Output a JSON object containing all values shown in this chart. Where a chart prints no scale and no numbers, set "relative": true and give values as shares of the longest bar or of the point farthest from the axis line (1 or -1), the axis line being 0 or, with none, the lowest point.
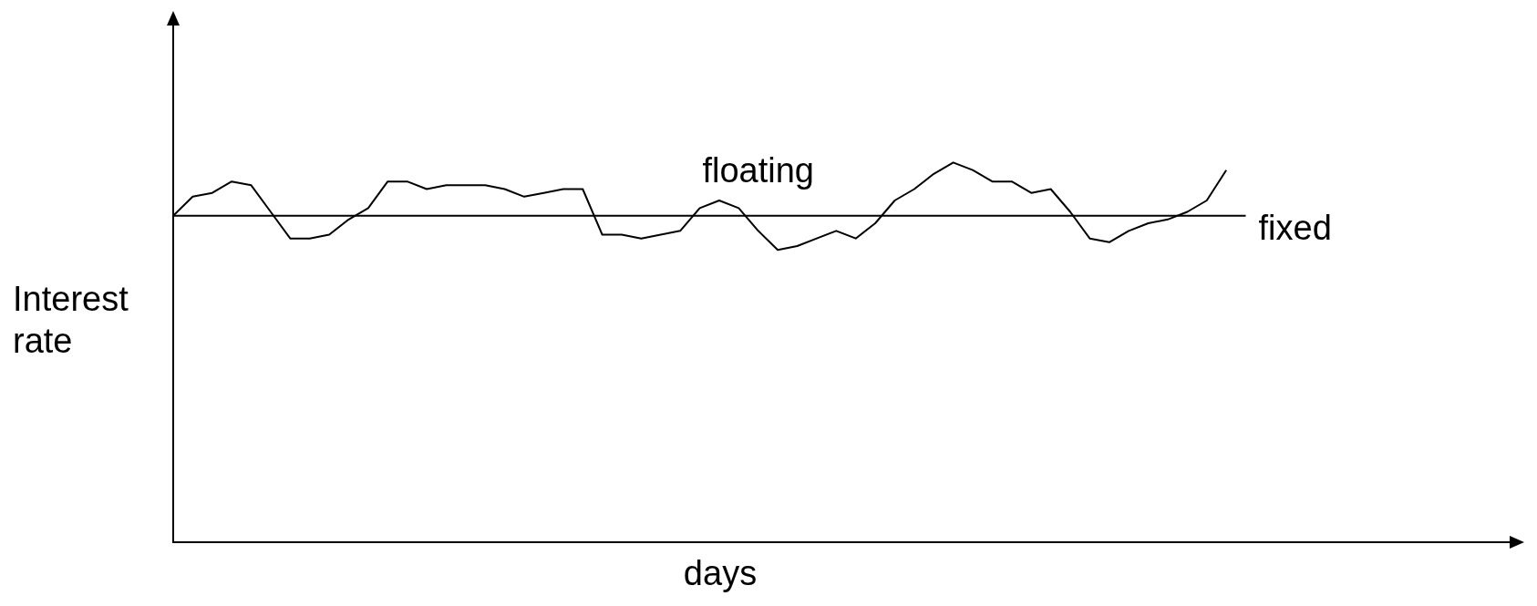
{
  "chart_data": {
    "type": "line",
    "relative": true,
    "xlabel": "days",
    "ylabel": "Interest rate",
    "legend": false,
    "grid": false,
    "marker": "none",
    "line_style": "solid",
    "categories": [
      null,
      null,
      null,
      null,
      null,
      null,
      null,
      null,
      null,
      null,
      null,
      null,
      null,
      null,
      null,
      null,
      null,
      null,
      null,
      null,
      null,
      null,
      null,
      null,
      null,
      null,
      null,
      null,
      null,
      null,
      null,
      null,
      null,
      null,
      null,
      null,
      null,
      null,
      null,
      null,
      null,
      null,
      null,
      null,
      null,
      null,
      null,
      null,
      null,
      null,
      null,
      null,
      null,
      null,
      null,
      null,
      null,
      null,
      null,
      null,
      null,
      null,
      null,
      null,
      null,
      null,
      null,
      null,
      null,
      null
    ],
    "series": [
      {
        "name": "floating",
        "color": "#000000",
        "values": [
          0.86,
          0.91,
          0.92,
          0.95,
          0.94,
          0.87,
          0.8,
          0.8,
          0.81,
          0.85,
          0.88,
          0.95,
          0.95,
          0.93,
          0.94,
          0.94,
          0.94,
          0.93,
          0.91,
          0.92,
          0.93,
          0.93,
          0.81,
          0.81,
          0.8,
          0.81,
          0.82,
          0.88,
          0.9,
          0.88,
          0.82,
          0.77,
          0.78,
          0.8,
          0.82,
          0.8,
          0.84,
          0.9,
          0.93,
          0.97,
          1,
          0.98,
          0.95,
          0.95,
          0.92,
          0.93,
          0.87,
          0.8,
          0.79,
          0.82,
          0.84,
          0.85,
          0.87,
          0.9,
          0.98,
          null,
          null,
          null,
          null,
          null,
          null,
          null,
          null,
          null,
          null,
          null,
          null,
          null,
          null,
          null
        ]
      },
      {
        "name": "fixed",
        "color": "#000000",
        "values": [
          0.86,
          0.86,
          0.86,
          0.86,
          0.86,
          0.86,
          0.86,
          0.86,
          0.86,
          0.86,
          0.86,
          0.86,
          0.86,
          0.86,
          0.86,
          0.86,
          0.86,
          0.86,
          0.86,
          0.86,
          0.86,
          0.86,
          0.86,
          0.86,
          0.86,
          0.86,
          0.86,
          0.86,
          0.86,
          0.86,
          0.86,
          0.86,
          0.86,
          0.86,
          0.86,
          0.86,
          0.86,
          0.86,
          0.86,
          0.86,
          0.86,
          0.86,
          0.86,
          0.86,
          0.86,
          0.86,
          0.86,
          0.86,
          0.86,
          0.86,
          0.86,
          0.86,
          0.86,
          0.86,
          0.86,
          0.86,
          null,
          null,
          null,
          null,
          null,
          null,
          null,
          null,
          null,
          null,
          null,
          null,
          null,
          null
        ]
      }
    ]
  }
}
